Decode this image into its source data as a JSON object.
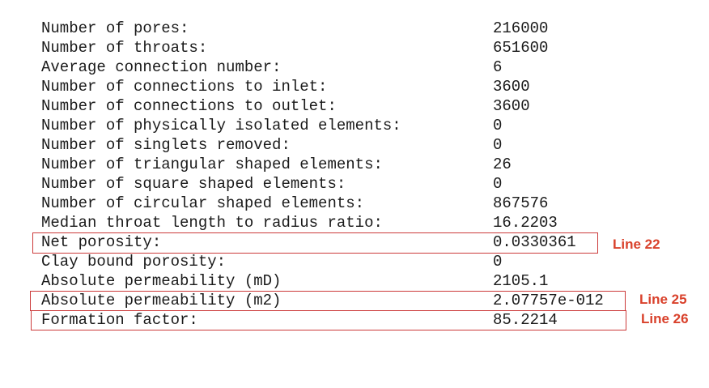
{
  "stats": [
    {
      "label": "Number of pores:",
      "value": "216000"
    },
    {
      "label": "Number of throats:",
      "value": "651600"
    },
    {
      "label": "Average connection number:",
      "value": "6"
    },
    {
      "label": "Number of connections to inlet:",
      "value": "3600"
    },
    {
      "label": "Number of connections to outlet:",
      "value": "3600"
    },
    {
      "label": "Number of physically isolated elements:",
      "value": "0"
    },
    {
      "label": "Number of singlets removed:",
      "value": "0"
    },
    {
      "label": "Number of triangular shaped elements:",
      "value": "26"
    },
    {
      "label": "Number of square shaped elements:",
      "value": "0"
    },
    {
      "label": "Number of circular shaped elements:",
      "value": "867576"
    },
    {
      "label": "Median throat length to radius ratio:",
      "value": "16.2203"
    },
    {
      "label": "Net porosity:",
      "value": "0.0330361"
    },
    {
      "label": "Clay bound porosity:",
      "value": "0"
    },
    {
      "label": "Absolute permeability (mD)",
      "value": "2105.1"
    },
    {
      "label": "Absolute permeability (m2)",
      "value": "2.07757e-012"
    },
    {
      "label": "Formation factor:",
      "value": "85.2214"
    }
  ],
  "annotations": {
    "line22": "Line 22",
    "line25": "Line 25",
    "line26": "Line 26"
  },
  "colors": {
    "highlight": "#cc3a3a",
    "note_text": "#d9412b",
    "text": "#1a1a1a"
  }
}
